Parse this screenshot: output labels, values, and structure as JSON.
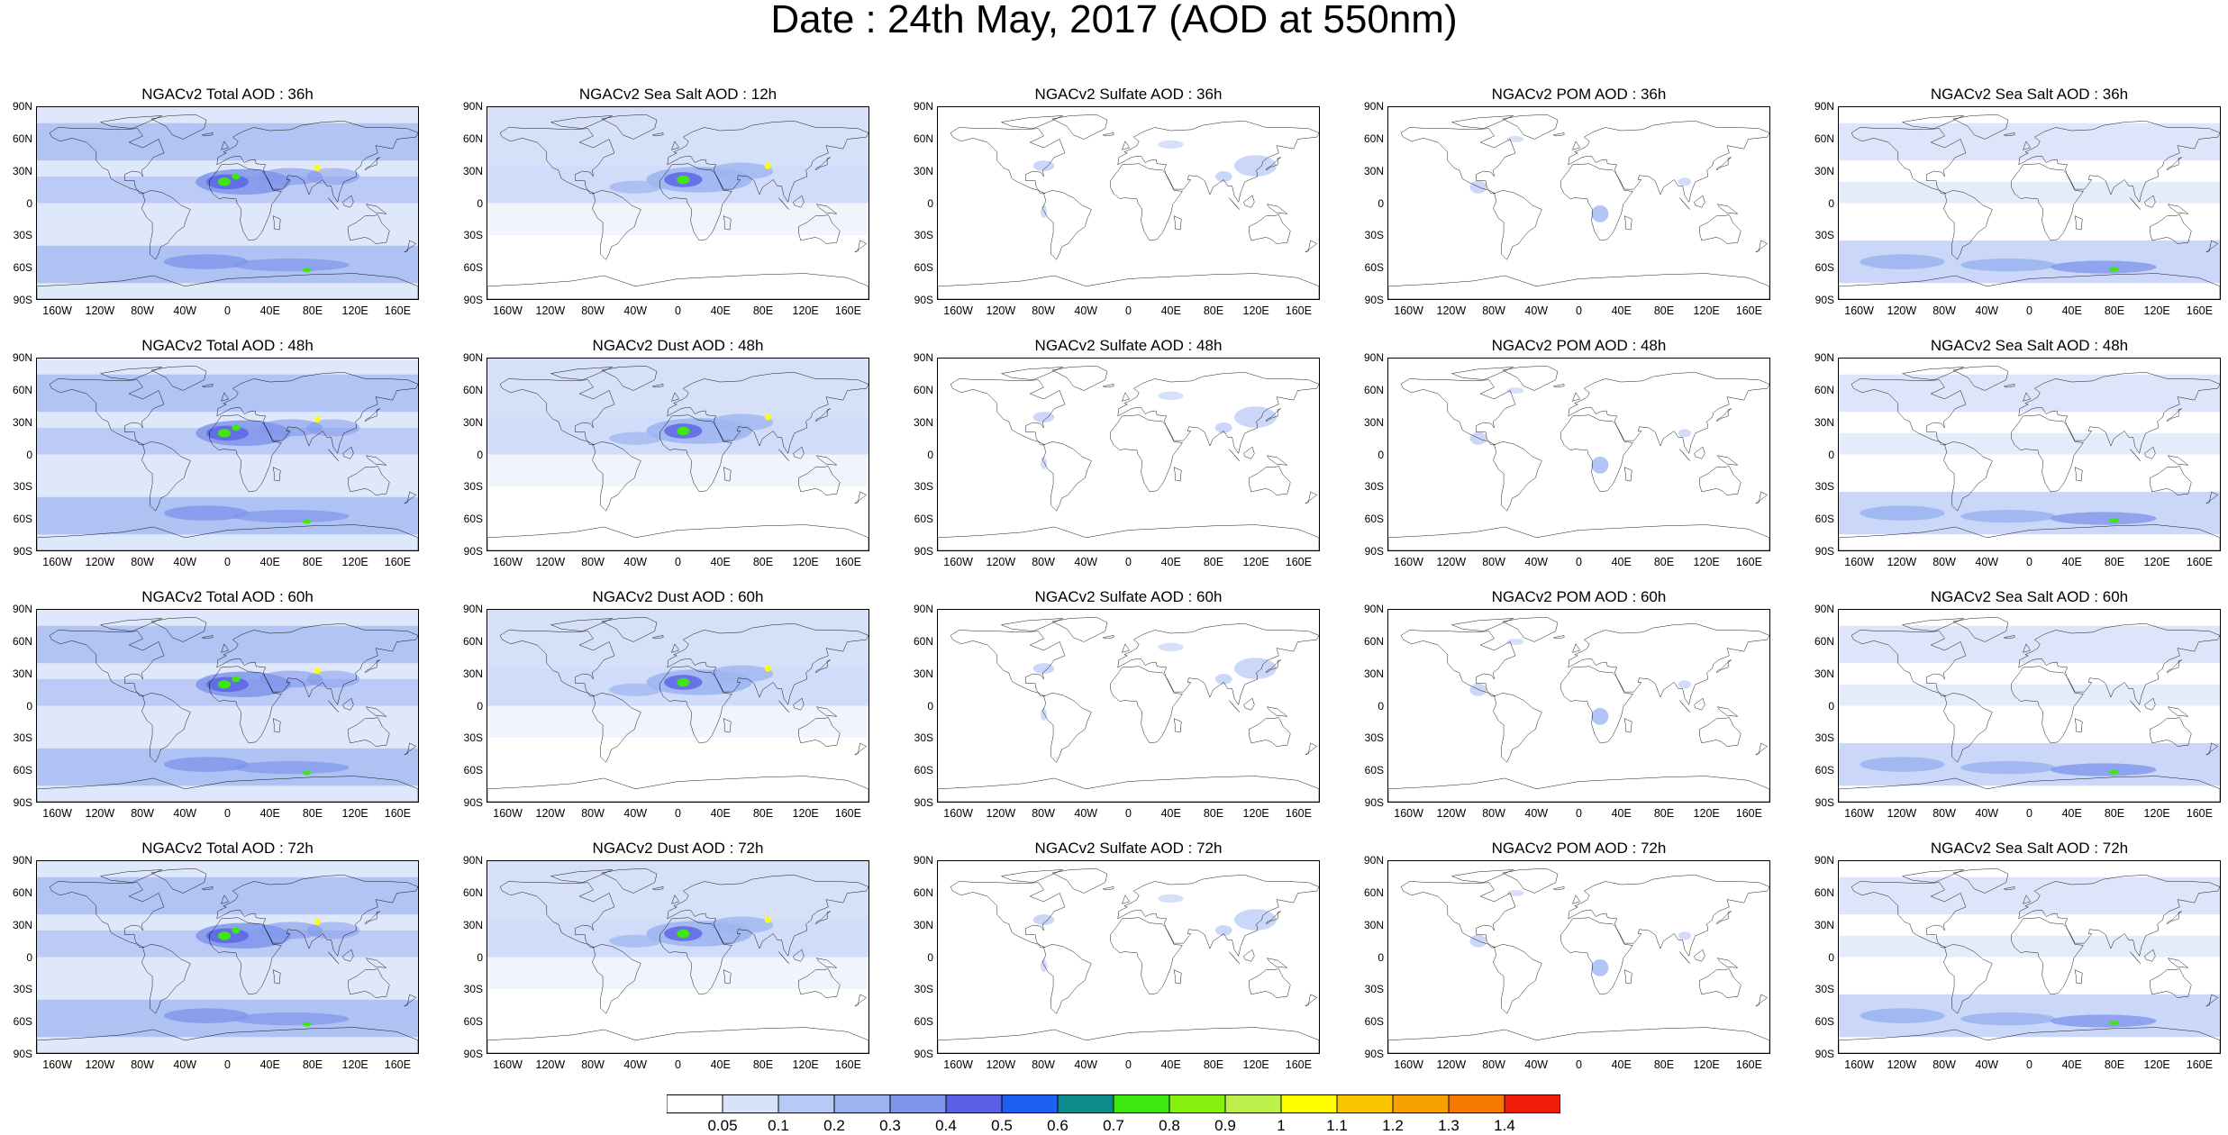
{
  "title": "Date : 24th May, 2017 (AOD at 550nm)",
  "lat_ticks": [
    "90N",
    "60N",
    "30N",
    "0",
    "30S",
    "60S",
    "90S"
  ],
  "lon_ticks": [
    "160W",
    "120W",
    "80W",
    "40W",
    "0",
    "40E",
    "80E",
    "120E",
    "160E"
  ],
  "panels": [
    [
      "NGACv2 Total AOD : 36h",
      "NGACv2 Sea Salt  AOD : 12h",
      "NGACv2 Sulfate AOD : 36h",
      "NGACv2 POM AOD : 36h",
      "NGACv2 Sea Salt AOD : 36h"
    ],
    [
      "NGACv2 Total AOD : 48h",
      "NGACv2 Dust AOD : 48h",
      "NGACv2 Sulfate AOD : 48h",
      "NGACv2 POM AOD : 48h",
      "NGACv2 Sea Salt AOD : 48h"
    ],
    [
      "NGACv2 Total AOD : 60h",
      "NGACv2 Dust AOD : 60h",
      "NGACv2 Sulfate AOD : 60h",
      "NGACv2 POM AOD : 60h",
      "NGACv2 Sea Salt AOD : 60h"
    ],
    [
      "NGACv2 Total AOD : 72h",
      "NGACv2 Dust AOD : 72h",
      "NGACv2 Sulfate AOD : 72h",
      "NGACv2 POM AOD : 72h",
      "NGACv2 Sea Salt  AOD : 72h"
    ]
  ],
  "colorbar": {
    "labels": [
      "0.05",
      "0.1",
      "0.2",
      "0.3",
      "0.4",
      "0.5",
      "0.6",
      "0.7",
      "0.8",
      "0.9",
      "1",
      "1.1",
      "1.2",
      "1.3",
      "1.4"
    ],
    "colors": [
      "#ffffff",
      "#d8e2fb",
      "#b7c9f5",
      "#9cb3f0",
      "#7f95eb",
      "#5b5fe6",
      "#1e5ef0",
      "#0d8a8a",
      "#3ee70e",
      "#86f00f",
      "#bdf04a",
      "#ffff00",
      "#f8c400",
      "#f7a100",
      "#f57900",
      "#f01c0c"
    ]
  },
  "map_colors": {
    "ocean_light": "#c4d3f7",
    "ocean_mid": "#9db5f0",
    "band_dark": "#7f96eb",
    "dust_core": "#5b60e6",
    "hotspot_green": "#3ee70e",
    "hotspot_yellow": "#ffff00",
    "coast": "#000000"
  }
}
